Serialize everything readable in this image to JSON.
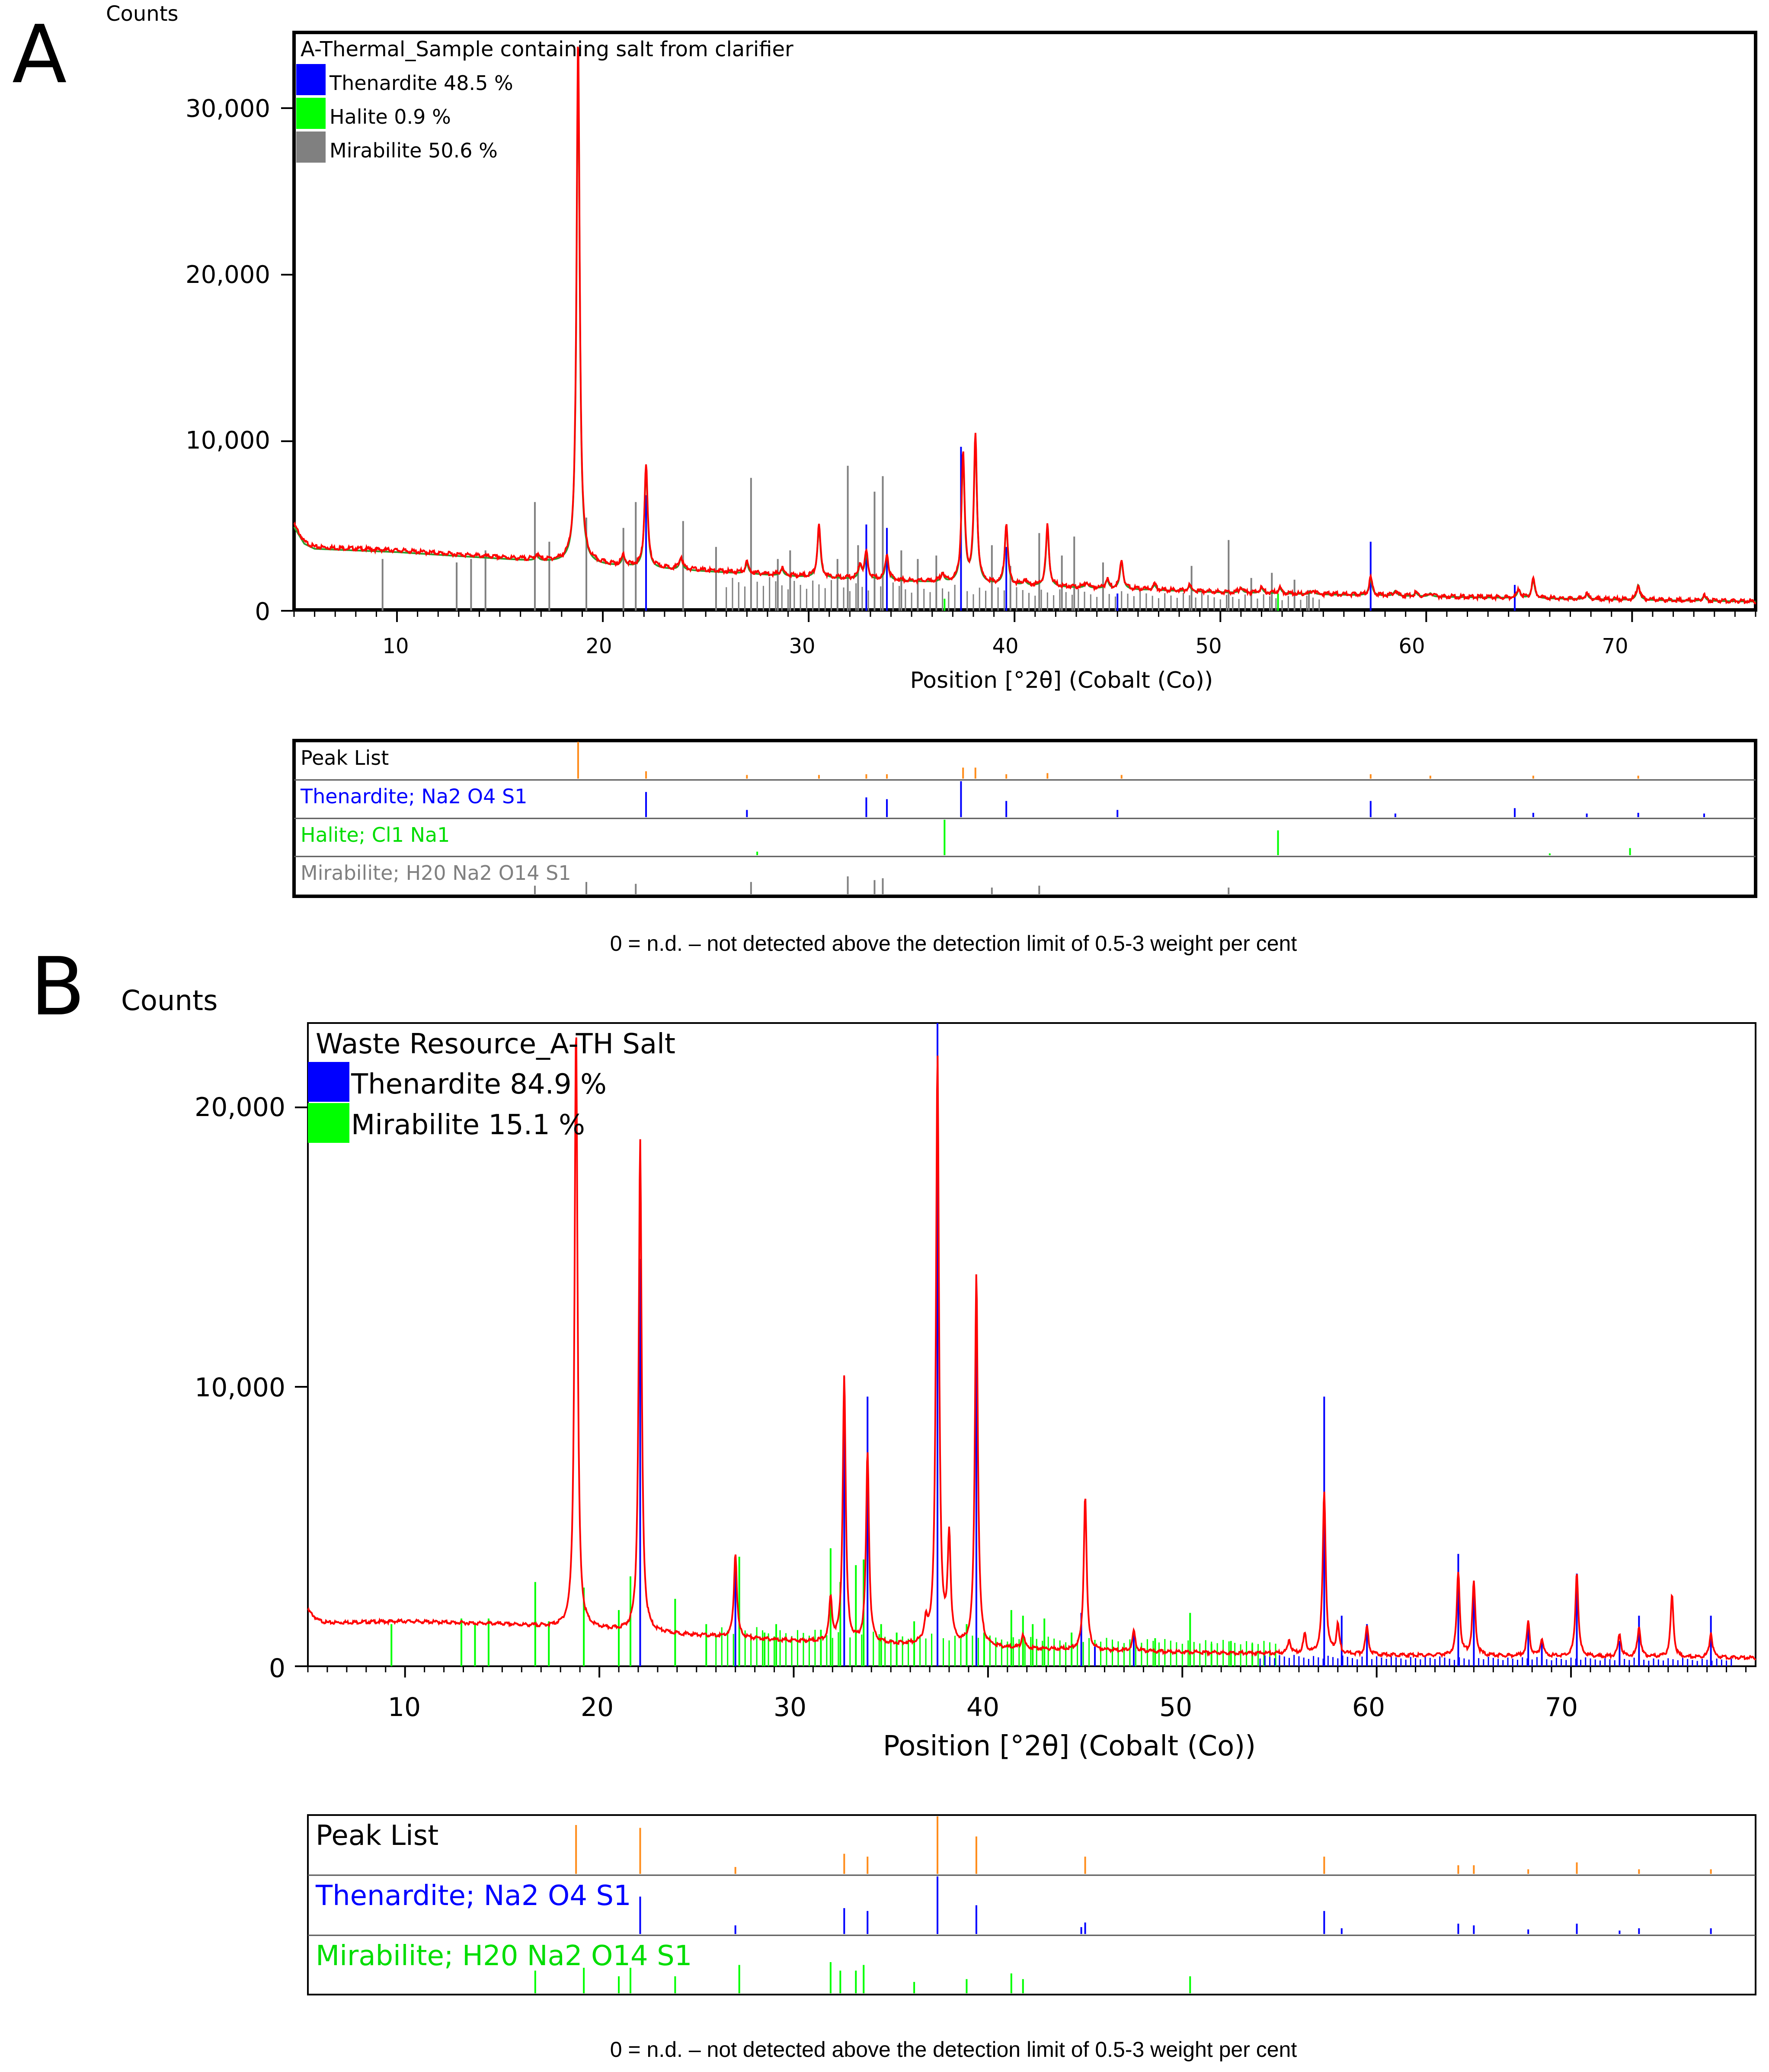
{
  "colors": {
    "thenardite": "#0000ff",
    "halite": "#00ff00",
    "mirabilite_a": "#808080",
    "mirabilite_b": "#00ff00",
    "observed": "#ff0000",
    "calculated": "#2e9b2e",
    "peaklist": "#ff8c1a",
    "text": "#000000"
  },
  "chart_data": [
    {
      "panel": "A",
      "type": "line",
      "title": "A-Thermal_Sample containing salt from clarifier",
      "ylabel": "Counts",
      "xlabel": "Position [°2θ] (Cobalt (Co))",
      "xlim": [
        5,
        76
      ],
      "ylim": [
        0,
        33500
      ],
      "xticks": [
        10,
        20,
        30,
        40,
        50,
        60,
        70
      ],
      "yticks": [
        0,
        10000,
        20000,
        30000
      ],
      "ytick_labels": [
        "0",
        "10,000",
        "20,000",
        "30,000"
      ],
      "legend": [
        {
          "label": "Thenardite 48.5 %",
          "color": "#0000ff"
        },
        {
          "label": "Halite 0.9 %",
          "color": "#00ff00"
        },
        {
          "label": "Mirabilite 50.6 %",
          "color": "#808080"
        }
      ],
      "background": [
        [
          5,
          5000
        ],
        [
          5.5,
          4000
        ],
        [
          6,
          3700
        ],
        [
          8,
          3600
        ],
        [
          10,
          3500
        ],
        [
          15,
          3100
        ],
        [
          20,
          2700
        ],
        [
          30,
          2000
        ],
        [
          40,
          1500
        ],
        [
          50,
          1100
        ],
        [
          60,
          850
        ],
        [
          70,
          650
        ],
        [
          76,
          550
        ]
      ],
      "observed_peaks": [
        [
          16.8,
          300
        ],
        [
          18.8,
          30500
        ],
        [
          21,
          600
        ],
        [
          22.1,
          6000
        ],
        [
          23.8,
          700
        ],
        [
          27,
          600
        ],
        [
          28.7,
          400
        ],
        [
          30.5,
          3000
        ],
        [
          32.5,
          800
        ],
        [
          32.8,
          1500
        ],
        [
          33.8,
          1500
        ],
        [
          36.5,
          500
        ],
        [
          37.5,
          7500
        ],
        [
          38.1,
          8500
        ],
        [
          39.6,
          3500
        ],
        [
          40.5,
          300
        ],
        [
          41.6,
          3500
        ],
        [
          43.5,
          300
        ],
        [
          44.5,
          500
        ],
        [
          45.2,
          1700
        ],
        [
          46.8,
          300
        ],
        [
          48.5,
          300
        ],
        [
          51,
          300
        ],
        [
          52,
          300
        ],
        [
          52.9,
          300
        ],
        [
          54.5,
          200
        ],
        [
          57.3,
          1000
        ],
        [
          58.5,
          300
        ],
        [
          59.5,
          200
        ],
        [
          60.2,
          200
        ],
        [
          64.5,
          500
        ],
        [
          65.2,
          1100
        ],
        [
          67.8,
          300
        ],
        [
          70.3,
          900
        ],
        [
          73.5,
          300
        ]
      ],
      "reference_lines": {
        "thenardite": [
          [
            22.1,
            6700
          ],
          [
            32.8,
            5000
          ],
          [
            33.8,
            4800
          ],
          [
            37.4,
            9500
          ],
          [
            39.6,
            3700
          ],
          [
            45,
            1000
          ],
          [
            57.3,
            4000
          ],
          [
            64.3,
            1500
          ]
        ],
        "halite": [
          [
            36.6,
            700
          ],
          [
            52.8,
            1000
          ]
        ],
        "mirabilite": [
          [
            9.3,
            3000
          ],
          [
            12.9,
            2800
          ],
          [
            13.6,
            3000
          ],
          [
            14.3,
            3500
          ],
          [
            16.7,
            6300
          ],
          [
            17.4,
            4000
          ],
          [
            19.2,
            5400
          ],
          [
            21,
            4800
          ],
          [
            21.6,
            6300
          ],
          [
            23.9,
            5200
          ],
          [
            25.5,
            3700
          ],
          [
            27.2,
            7700
          ],
          [
            28.5,
            3000
          ],
          [
            29.1,
            3500
          ],
          [
            31.4,
            3000
          ],
          [
            31.9,
            8400
          ],
          [
            32.4,
            3800
          ],
          [
            33.2,
            6900
          ],
          [
            33.6,
            7800
          ],
          [
            34.5,
            3500
          ],
          [
            35.3,
            3000
          ],
          [
            36.2,
            3200
          ],
          [
            38.9,
            3800
          ],
          [
            39.8,
            2600
          ],
          [
            41.2,
            4500
          ],
          [
            42.3,
            3200
          ],
          [
            42.9,
            4300
          ],
          [
            44.3,
            2800
          ],
          [
            48.6,
            2600
          ],
          [
            50.4,
            4100
          ],
          [
            51.5,
            1900
          ],
          [
            52.5,
            2200
          ],
          [
            53.6,
            1800
          ],
          [
            54.3,
            1200
          ]
        ]
      },
      "peak_list_panel": {
        "rows": [
          "Peak List",
          "Thenardite; Na2 O4 S1",
          "Halite; Cl1 Na1",
          "Mirabilite; H20 Na2 O14 S1"
        ],
        "peak_list": [
          [
            18.8,
            1.0
          ],
          [
            22.1,
            0.2
          ],
          [
            27,
            0.1
          ],
          [
            30.5,
            0.1
          ],
          [
            32.8,
            0.12
          ],
          [
            33.8,
            0.12
          ],
          [
            37.5,
            0.3
          ],
          [
            38.1,
            0.3
          ],
          [
            39.6,
            0.12
          ],
          [
            41.6,
            0.15
          ],
          [
            45.2,
            0.1
          ],
          [
            57.3,
            0.12
          ],
          [
            60.2,
            0.08
          ],
          [
            65.2,
            0.08
          ],
          [
            70.3,
            0.08
          ]
        ],
        "thenardite": [
          [
            22.1,
            0.7
          ],
          [
            27,
            0.2
          ],
          [
            32.8,
            0.55
          ],
          [
            33.8,
            0.5
          ],
          [
            37.4,
            1.0
          ],
          [
            39.6,
            0.45
          ],
          [
            45,
            0.2
          ],
          [
            57.3,
            0.45
          ],
          [
            58.5,
            0.1
          ],
          [
            64.3,
            0.25
          ],
          [
            65.2,
            0.12
          ],
          [
            67.8,
            0.1
          ],
          [
            70.3,
            0.12
          ],
          [
            73.5,
            0.1
          ]
        ],
        "halite": [
          [
            27.5,
            0.1
          ],
          [
            36.6,
            1.0
          ],
          [
            52.8,
            0.7
          ],
          [
            66,
            0.05
          ],
          [
            69.9,
            0.2
          ]
        ],
        "mirabilite": [
          [
            16.7,
            0.25
          ],
          [
            19.2,
            0.35
          ],
          [
            21.6,
            0.3
          ],
          [
            27.2,
            0.35
          ],
          [
            31.9,
            0.5
          ],
          [
            33.2,
            0.4
          ],
          [
            33.6,
            0.45
          ],
          [
            38.9,
            0.2
          ],
          [
            41.2,
            0.25
          ],
          [
            50.4,
            0.2
          ]
        ]
      }
    },
    {
      "panel": "B",
      "type": "line",
      "title": "Waste Resource_A-TH Salt",
      "ylabel": "Counts",
      "xlabel": "Position [°2θ] (Cobalt (Co))",
      "xlim": [
        5,
        79.5
      ],
      "ylim": [
        0,
        22900
      ],
      "xticks": [
        10,
        20,
        30,
        40,
        50,
        60,
        70
      ],
      "yticks": [
        0,
        10000,
        20000
      ],
      "ytick_labels": [
        "0",
        "10,000",
        "20,000"
      ],
      "legend": [
        {
          "label": "Thenardite 84.9 %",
          "color": "#0000ff"
        },
        {
          "label": "Mirabilite 15.1 %",
          "color": "#00ff00"
        }
      ],
      "background": [
        [
          5,
          2000
        ],
        [
          5.5,
          1650
        ],
        [
          6,
          1550
        ],
        [
          10,
          1600
        ],
        [
          15,
          1500
        ],
        [
          20,
          1300
        ],
        [
          30,
          900
        ],
        [
          40,
          650
        ],
        [
          50,
          500
        ],
        [
          60,
          400
        ],
        [
          70,
          350
        ],
        [
          79.5,
          300
        ]
      ],
      "observed_peaks": [
        [
          18.8,
          21500
        ],
        [
          22.1,
          17500
        ],
        [
          27,
          3000
        ],
        [
          31.9,
          1500
        ],
        [
          32.6,
          9500
        ],
        [
          33.8,
          6800
        ],
        [
          36.8,
          700
        ],
        [
          37.4,
          21000
        ],
        [
          38,
          3800
        ],
        [
          39.4,
          13300
        ],
        [
          41.8,
          500
        ],
        [
          45,
          5500
        ],
        [
          47.5,
          700
        ],
        [
          55.5,
          500
        ],
        [
          56.3,
          700
        ],
        [
          57.3,
          5800
        ],
        [
          58,
          1000
        ],
        [
          59.5,
          1000
        ],
        [
          64.2,
          3000
        ],
        [
          65,
          2600
        ],
        [
          67.8,
          1200
        ],
        [
          68.5,
          600
        ],
        [
          70.3,
          3000
        ],
        [
          72.5,
          800
        ],
        [
          73.5,
          1100
        ],
        [
          75.2,
          2200
        ],
        [
          77.2,
          900
        ]
      ],
      "reference_lines": {
        "thenardite": [
          [
            22.1,
            14500
          ],
          [
            27,
            3900
          ],
          [
            32.6,
            10300
          ],
          [
            33.8,
            9600
          ],
          [
            37.4,
            22900
          ],
          [
            39.4,
            12800
          ],
          [
            44.8,
            1900
          ],
          [
            45.5,
            700
          ],
          [
            47.5,
            1200
          ],
          [
            57.3,
            9600
          ],
          [
            58.2,
            1800
          ],
          [
            59.5,
            1500
          ],
          [
            64.2,
            4000
          ],
          [
            65,
            3000
          ],
          [
            67.8,
            1600
          ],
          [
            68.5,
            900
          ],
          [
            70.3,
            3300
          ],
          [
            72.5,
            900
          ],
          [
            73.5,
            1800
          ],
          [
            77.2,
            1800
          ]
        ],
        "mirabilite": [
          [
            9.3,
            1500
          ],
          [
            12.9,
            1700
          ],
          [
            13.6,
            1500
          ],
          [
            14.3,
            1700
          ],
          [
            16.7,
            3000
          ],
          [
            17.4,
            1600
          ],
          [
            19.2,
            2800
          ],
          [
            21,
            2000
          ],
          [
            21.6,
            3200
          ],
          [
            23.9,
            2400
          ],
          [
            25.5,
            1500
          ],
          [
            27.2,
            3900
          ],
          [
            28.5,
            1200
          ],
          [
            29.1,
            1500
          ],
          [
            31.4,
            1300
          ],
          [
            31.9,
            4200
          ],
          [
            32.4,
            3000
          ],
          [
            33.2,
            3600
          ],
          [
            33.6,
            3800
          ],
          [
            34.5,
            1500
          ],
          [
            35.3,
            1200
          ],
          [
            36.2,
            1600
          ],
          [
            38.9,
            1500
          ],
          [
            39.8,
            1200
          ],
          [
            41.2,
            2000
          ],
          [
            41.8,
            1800
          ],
          [
            42.3,
            1500
          ],
          [
            42.9,
            1700
          ],
          [
            44.3,
            1200
          ],
          [
            48.6,
            1000
          ],
          [
            50.4,
            1900
          ],
          [
            51.5,
            800
          ],
          [
            52.5,
            900
          ],
          [
            53.6,
            800
          ]
        ]
      },
      "peak_list_panel": {
        "rows": [
          "Peak List",
          "Thenardite; Na2 O4 S1",
          "Mirabilite; H20 Na2 O14 S1"
        ],
        "peak_list": [
          [
            18.8,
            0.85
          ],
          [
            22.1,
            0.8
          ],
          [
            27,
            0.12
          ],
          [
            32.6,
            0.35
          ],
          [
            33.8,
            0.3
          ],
          [
            37.4,
            1.0
          ],
          [
            39.4,
            0.65
          ],
          [
            45,
            0.3
          ],
          [
            57.3,
            0.3
          ],
          [
            64.2,
            0.15
          ],
          [
            65,
            0.15
          ],
          [
            67.8,
            0.08
          ],
          [
            70.3,
            0.2
          ],
          [
            73.5,
            0.08
          ],
          [
            77.2,
            0.08
          ]
        ],
        "thenardite": [
          [
            22.1,
            0.65
          ],
          [
            27,
            0.15
          ],
          [
            32.6,
            0.45
          ],
          [
            33.8,
            0.4
          ],
          [
            37.4,
            1.0
          ],
          [
            39.4,
            0.5
          ],
          [
            44.8,
            0.12
          ],
          [
            45,
            0.2
          ],
          [
            57.3,
            0.4
          ],
          [
            58.2,
            0.1
          ],
          [
            64.2,
            0.18
          ],
          [
            65,
            0.15
          ],
          [
            67.8,
            0.08
          ],
          [
            70.3,
            0.18
          ],
          [
            72.5,
            0.06
          ],
          [
            73.5,
            0.1
          ],
          [
            77.2,
            0.1
          ]
        ],
        "mirabilite": [
          [
            16.7,
            0.4
          ],
          [
            19.2,
            0.45
          ],
          [
            21,
            0.3
          ],
          [
            21.6,
            0.45
          ],
          [
            23.9,
            0.3
          ],
          [
            27.2,
            0.5
          ],
          [
            31.9,
            0.55
          ],
          [
            32.4,
            0.4
          ],
          [
            33.2,
            0.4
          ],
          [
            33.6,
            0.5
          ],
          [
            36.2,
            0.2
          ],
          [
            38.9,
            0.25
          ],
          [
            41.2,
            0.35
          ],
          [
            41.8,
            0.25
          ],
          [
            50.4,
            0.3
          ]
        ]
      }
    }
  ],
  "panels": {
    "a": {
      "label": "A",
      "ylabel": "Counts",
      "title": "A-Thermal_Sample containing salt from clarifier",
      "xlabel": "Position [°2θ] (Cobalt (Co))",
      "legend": [
        "Thenardite 48.5 %",
        "Halite 0.9 %",
        "Mirabilite 50.6 %"
      ],
      "yticks": [
        "0",
        "10,000",
        "20,000",
        "30,000"
      ],
      "xticks": [
        "10",
        "20",
        "30",
        "40",
        "50",
        "60",
        "70"
      ],
      "peak_rows": [
        "Peak List",
        "Thenardite; Na2 O4 S1",
        "Halite; Cl1 Na1",
        "Mirabilite; H20 Na2 O14 S1"
      ],
      "footnote": "0 = n.d. – not detected above the detection limit of 0.5-3 weight per cent"
    },
    "b": {
      "label": "B",
      "ylabel": "Counts",
      "title": "Waste Resource_A-TH Salt",
      "xlabel": "Position [°2θ] (Cobalt (Co))",
      "legend": [
        "Thenardite 84.9 %",
        "Mirabilite 15.1 %"
      ],
      "yticks": [
        "0",
        "10,000",
        "20,000"
      ],
      "xticks": [
        "10",
        "20",
        "30",
        "40",
        "50",
        "60",
        "70"
      ],
      "peak_rows": [
        "Peak List",
        "Thenardite; Na2 O4 S1",
        "Mirabilite; H20 Na2 O14 S1"
      ],
      "footnote": "0 = n.d. – not detected above the detection limit of 0.5-3 weight per cent"
    }
  }
}
